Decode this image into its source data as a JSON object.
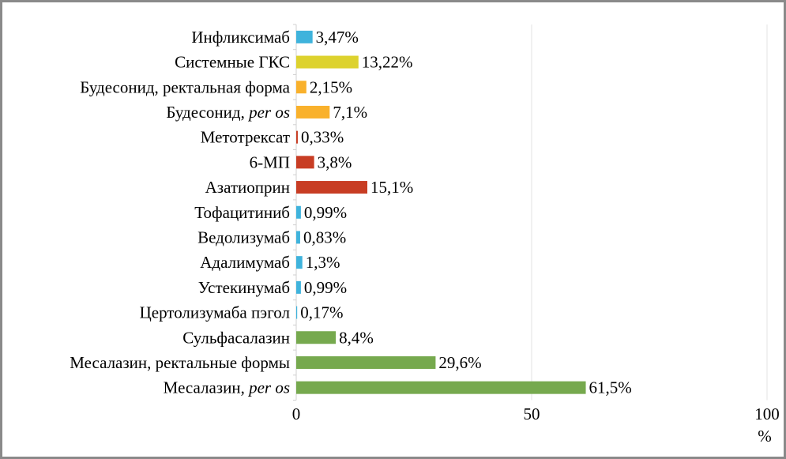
{
  "chart_data": {
    "type": "bar",
    "orientation": "horizontal",
    "title": "",
    "xlabel": "%",
    "ylabel": "",
    "xlim": [
      0,
      100
    ],
    "xticks": [
      "0",
      "50",
      "100"
    ],
    "grid": true,
    "categories": [
      {
        "label": "Инфликсимаб",
        "italic_suffix": ""
      },
      {
        "label": "Системные ГКС",
        "italic_suffix": ""
      },
      {
        "label": "Будесонид, ректальная форма",
        "italic_suffix": ""
      },
      {
        "label": "Будесонид, ",
        "italic_suffix": "per os"
      },
      {
        "label": "Метотрексат",
        "italic_suffix": ""
      },
      {
        "label": "6-МП",
        "italic_suffix": ""
      },
      {
        "label": "Азатиоприн",
        "italic_suffix": ""
      },
      {
        "label": "Тофацитиниб",
        "italic_suffix": ""
      },
      {
        "label": "Ведолизумаб",
        "italic_suffix": ""
      },
      {
        "label": "Адалимумаб",
        "italic_suffix": ""
      },
      {
        "label": "Устекинумаб",
        "italic_suffix": ""
      },
      {
        "label": "Цертолизумаба пэгол",
        "italic_suffix": ""
      },
      {
        "label": "Сульфасалазин",
        "italic_suffix": ""
      },
      {
        "label": "Месалазин, ректальные формы",
        "italic_suffix": ""
      },
      {
        "label": "Месалазин, ",
        "italic_suffix": "per os"
      }
    ],
    "values": [
      3.47,
      13.22,
      2.15,
      7.1,
      0.33,
      3.8,
      15.1,
      0.99,
      0.83,
      1.3,
      0.99,
      0.17,
      8.4,
      29.6,
      61.5
    ],
    "data_labels": [
      "3,47%",
      "13,22%",
      "2,15%",
      "7,1%",
      "0,33%",
      "3,8%",
      "15,1%",
      "0,99%",
      "0,83%",
      "1,3%",
      "0,99%",
      "0,17%",
      "8,4%",
      "29,6%",
      "61,5%"
    ],
    "colors": [
      "#3fb3dc",
      "#ddd22e",
      "#f9b12c",
      "#f9b12c",
      "#c83d24",
      "#c83d24",
      "#c83d24",
      "#3fb3dc",
      "#3fb3dc",
      "#3fb3dc",
      "#3fb3dc",
      "#3fb3dc",
      "#76a94e",
      "#76a94e",
      "#76a94e"
    ]
  }
}
